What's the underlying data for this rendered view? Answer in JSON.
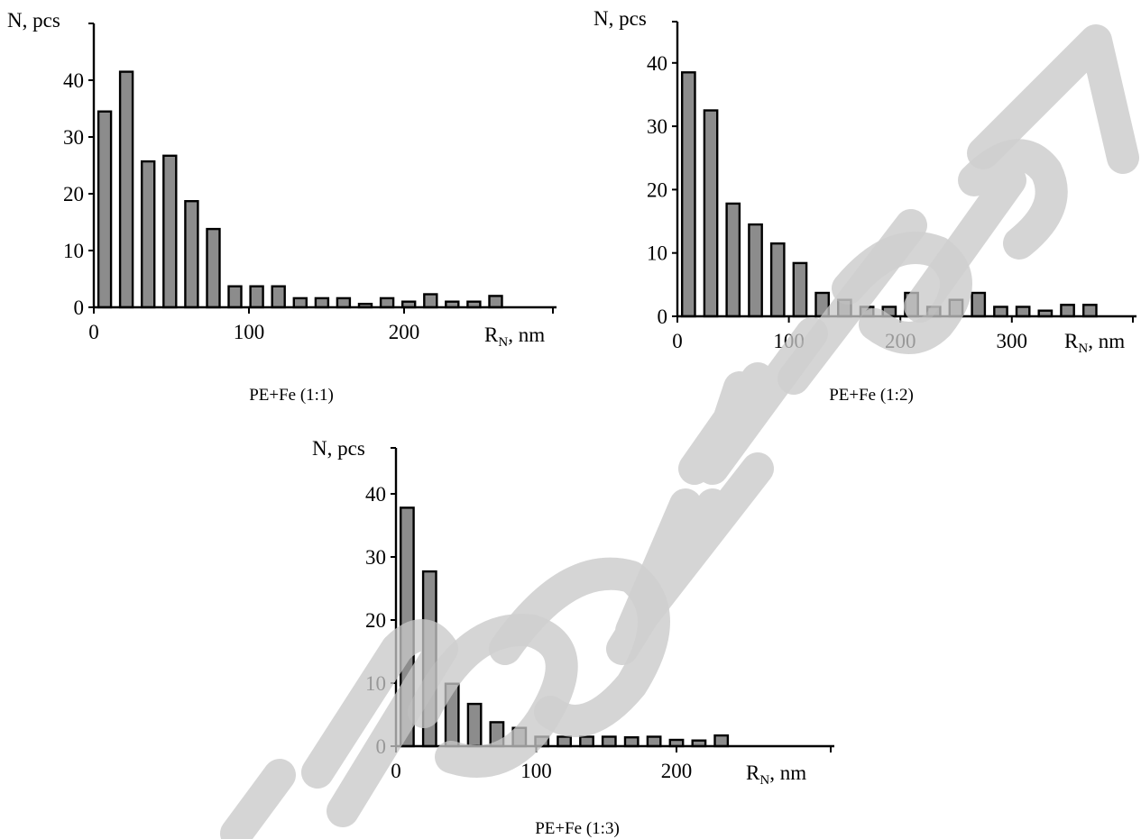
{
  "chart_data": [
    {
      "type": "bar",
      "caption": "PE+Fe (1:1)",
      "xlabel": "R",
      "xlabel_sub": "N",
      "xlabel_unit": ", nm",
      "ylabel": "N, pcs",
      "xlim": [
        0,
        300
      ],
      "ylim": [
        0,
        50
      ],
      "xticks": [
        0,
        100,
        200
      ],
      "yticks": [
        0,
        10,
        20,
        30,
        40
      ],
      "bin_width": 14,
      "series": [
        {
          "x": [
            7,
            21,
            35,
            49,
            63,
            77,
            91,
            105,
            119,
            133,
            147,
            161,
            175,
            189,
            203,
            217,
            231,
            245,
            259
          ],
          "values": [
            34.5,
            41.5,
            25.7,
            26.7,
            18.7,
            13.8,
            3.7,
            3.7,
            3.7,
            1.6,
            1.6,
            1.6,
            0.6,
            1.6,
            1.0,
            2.3,
            1.0,
            1.0,
            2.0
          ]
        }
      ]
    },
    {
      "type": "bar",
      "caption": "PE+Fe (1:2)",
      "xlabel": "R",
      "xlabel_sub": "N",
      "xlabel_unit": ", nm",
      "ylabel": "N, pcs",
      "xlim": [
        0,
        410
      ],
      "ylim": [
        0,
        47
      ],
      "xticks": [
        0,
        100,
        200,
        300
      ],
      "yticks": [
        0,
        10,
        20,
        30,
        40
      ],
      "bin_width": 20,
      "series": [
        {
          "x": [
            10,
            30,
            50,
            70,
            90,
            110,
            130,
            150,
            170,
            190,
            210,
            230,
            250,
            270,
            290,
            310,
            330,
            350,
            370
          ],
          "values": [
            38.5,
            32.5,
            17.8,
            14.5,
            11.5,
            8.4,
            3.7,
            2.6,
            1.5,
            1.5,
            3.7,
            1.5,
            2.6,
            3.7,
            1.5,
            1.5,
            0.9,
            1.8,
            1.8
          ]
        }
      ]
    },
    {
      "type": "bar",
      "caption": "PE+Fe (1:3)",
      "xlabel": "R",
      "xlabel_sub": "N",
      "xlabel_unit": ", nm",
      "ylabel": "N, pcs",
      "xlim": [
        0,
        310
      ],
      "ylim": [
        0,
        47
      ],
      "xticks": [
        0,
        100,
        200
      ],
      "yticks": [
        0,
        10,
        20,
        30,
        40
      ],
      "bin_width": 16,
      "series": [
        {
          "x": [
            8,
            24,
            40,
            56,
            72,
            88,
            104,
            120,
            136,
            152,
            168,
            184,
            200,
            216,
            232
          ],
          "values": [
            37.8,
            27.7,
            9.9,
            6.7,
            3.8,
            2.9,
            1.5,
            1.5,
            1.5,
            1.5,
            1.4,
            1.5,
            1.0,
            0.9,
            1.7
          ]
        }
      ]
    }
  ],
  "watermark": {
    "text": "Репозиторий КарГУ",
    "color": "#c8c8c8"
  }
}
